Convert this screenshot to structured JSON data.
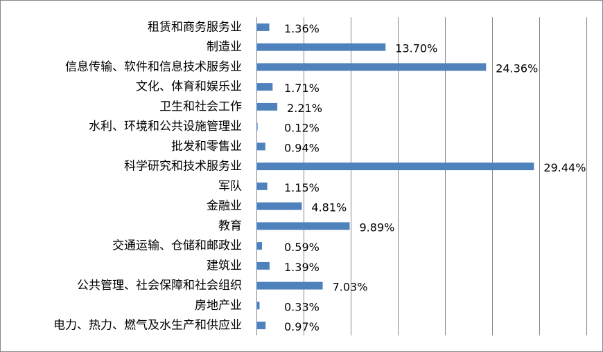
{
  "chart_data": {
    "type": "bar",
    "orientation": "horizontal",
    "categories": [
      "租赁和商务服务业",
      "制造业",
      "信息传输、软件和信息技术服务业",
      "文化、体育和娱乐业",
      "卫生和社会工作",
      "水利、环境和公共设施管理业",
      "批发和零售业",
      "科学研究和技术服务业",
      "军队",
      "金融业",
      "教育",
      "交通运输、仓储和邮政业",
      "建筑业",
      "公共管理、社会保障和社会组织",
      "房地产业",
      "电力、热力、燃气及水生产和供应业"
    ],
    "values": [
      1.36,
      13.7,
      24.36,
      1.71,
      2.21,
      0.12,
      0.94,
      29.44,
      1.15,
      4.81,
      9.89,
      0.59,
      1.39,
      7.03,
      0.33,
      0.97
    ],
    "value_labels": [
      "1.36%",
      "13.70%",
      "24.36%",
      "1.71%",
      "2.21%",
      "0.12%",
      "0.94%",
      "29.44%",
      "1.15%",
      "4.81%",
      "9.89%",
      "0.59%",
      "1.39%",
      "7.03%",
      "0.33%",
      "0.97%"
    ],
    "xlim": [
      0,
      35
    ],
    "major_gridline_step": 5,
    "grid": "vertical",
    "legend": "none",
    "bar_color": "#4F81BD",
    "gridline_color": "#868686",
    "title": "",
    "xlabel": "",
    "ylabel": ""
  }
}
